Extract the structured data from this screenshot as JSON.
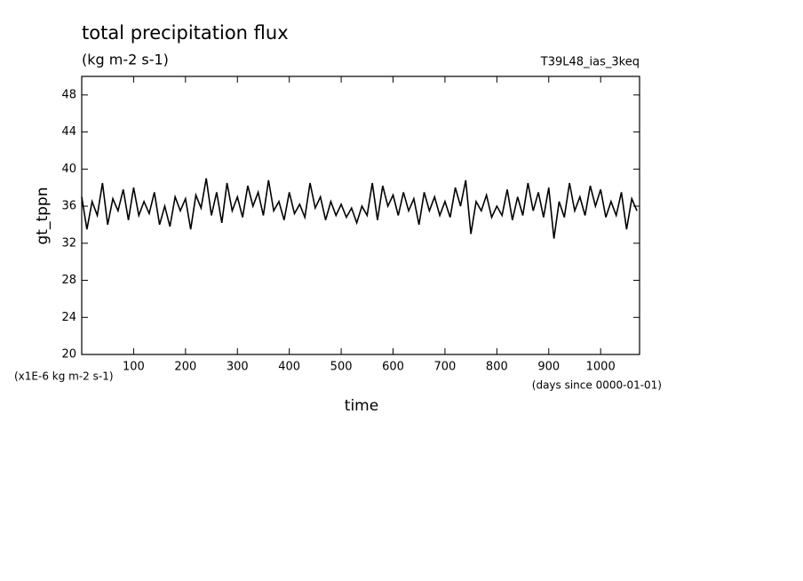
{
  "chart_data": {
    "type": "line",
    "title": "total precipitation flux",
    "subtitle": "(kg m-2 s-1)",
    "annotation": "T39L48_ias_3keq",
    "y_label": "gt_tppn",
    "x_label": "time",
    "y_unit": "(x1E-6 kg m-2 s-1)",
    "x_unit": "(days since 0000-01-01)",
    "xlim": [
      0,
      1075
    ],
    "ylim": [
      20,
      50
    ],
    "xticks": [
      100,
      200,
      300,
      400,
      500,
      600,
      700,
      800,
      900,
      1000
    ],
    "yticks": [
      20,
      24,
      28,
      32,
      36,
      40,
      44,
      48
    ],
    "x": [
      0,
      10,
      20,
      30,
      40,
      50,
      60,
      70,
      80,
      90,
      100,
      110,
      120,
      130,
      140,
      150,
      160,
      170,
      180,
      190,
      200,
      210,
      220,
      230,
      240,
      250,
      260,
      270,
      280,
      290,
      300,
      310,
      320,
      330,
      340,
      350,
      360,
      370,
      380,
      390,
      400,
      410,
      420,
      430,
      440,
      450,
      460,
      470,
      480,
      490,
      500,
      510,
      520,
      530,
      540,
      550,
      560,
      570,
      580,
      590,
      600,
      610,
      620,
      630,
      640,
      650,
      660,
      670,
      680,
      690,
      700,
      710,
      720,
      730,
      740,
      750,
      760,
      770,
      780,
      790,
      800,
      810,
      820,
      830,
      840,
      850,
      860,
      870,
      880,
      890,
      900,
      910,
      920,
      930,
      940,
      950,
      960,
      970,
      980,
      990,
      1000,
      1010,
      1020,
      1030,
      1040,
      1050,
      1060,
      1070
    ],
    "series": [
      {
        "color": "#000000",
        "values": [
          37,
          33.5,
          36.5,
          35,
          38.5,
          34,
          36.8,
          35.5,
          37.8,
          34.5,
          38,
          35,
          36.5,
          35.2,
          37.5,
          34,
          36,
          33.8,
          37,
          35.5,
          36.8,
          33.5,
          37.2,
          35.8,
          39,
          35,
          37.5,
          34.2,
          38.5,
          35.5,
          37,
          34.8,
          38.2,
          36,
          37.5,
          35,
          38.8,
          35.5,
          36.5,
          34.5,
          37.5,
          35.2,
          36.2,
          34.8,
          38.5,
          35.8,
          37,
          34.5,
          36.5,
          35,
          36.2,
          34.8,
          35.8,
          34.2,
          36,
          35,
          38.5,
          34.5,
          38.2,
          36,
          37.2,
          35,
          37.5,
          35.5,
          36.8,
          34,
          37.5,
          35.5,
          37,
          35,
          36.5,
          34.8,
          38,
          36,
          38.8,
          33,
          36.5,
          35.5,
          37.2,
          34.8,
          36,
          35,
          37.8,
          34.5,
          37,
          35,
          38.5,
          35.5,
          37.5,
          34.8,
          38,
          32.5,
          36.5,
          34.8,
          38.5,
          35.5,
          37,
          35,
          38.2,
          36,
          37.8,
          34.8,
          36.5,
          35,
          37.5,
          33.5,
          36.8,
          35.5
        ]
      }
    ]
  }
}
